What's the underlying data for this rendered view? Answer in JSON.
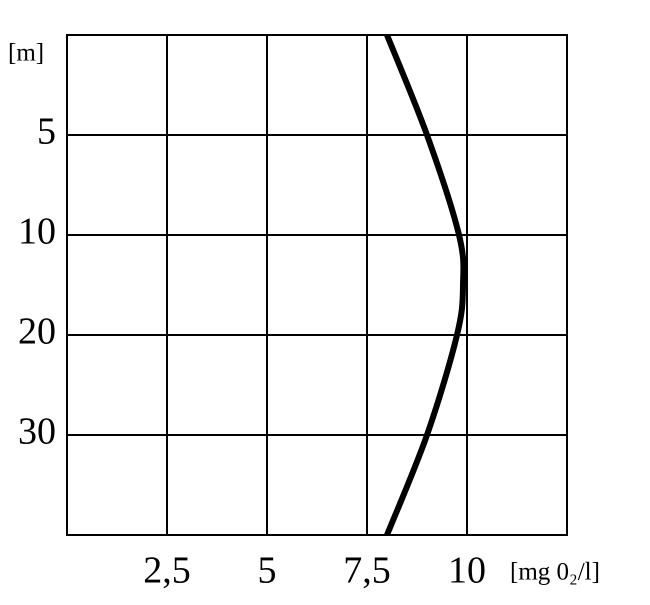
{
  "chart_data": {
    "type": "line",
    "x_label": "[mg 0₂/l]",
    "y_label": "[m]",
    "xlim": [
      0,
      12.5
    ],
    "xticks": [
      {
        "value": 2.5,
        "label": "2,5"
      },
      5,
      {
        "value": 7.5,
        "label": "7,5"
      },
      10
    ],
    "ylim": [
      0,
      40
    ],
    "yticks": [
      5,
      10,
      20,
      30
    ],
    "y_scale": "piecewise",
    "y_inverted": true,
    "grid": true,
    "series": [
      {
        "color": "#000000",
        "x": [
          8,
          9,
          9.8,
          9.9,
          9.75,
          9,
          8
        ],
        "y": [
          0,
          5,
          10,
          15,
          20,
          30,
          40
        ]
      }
    ]
  }
}
